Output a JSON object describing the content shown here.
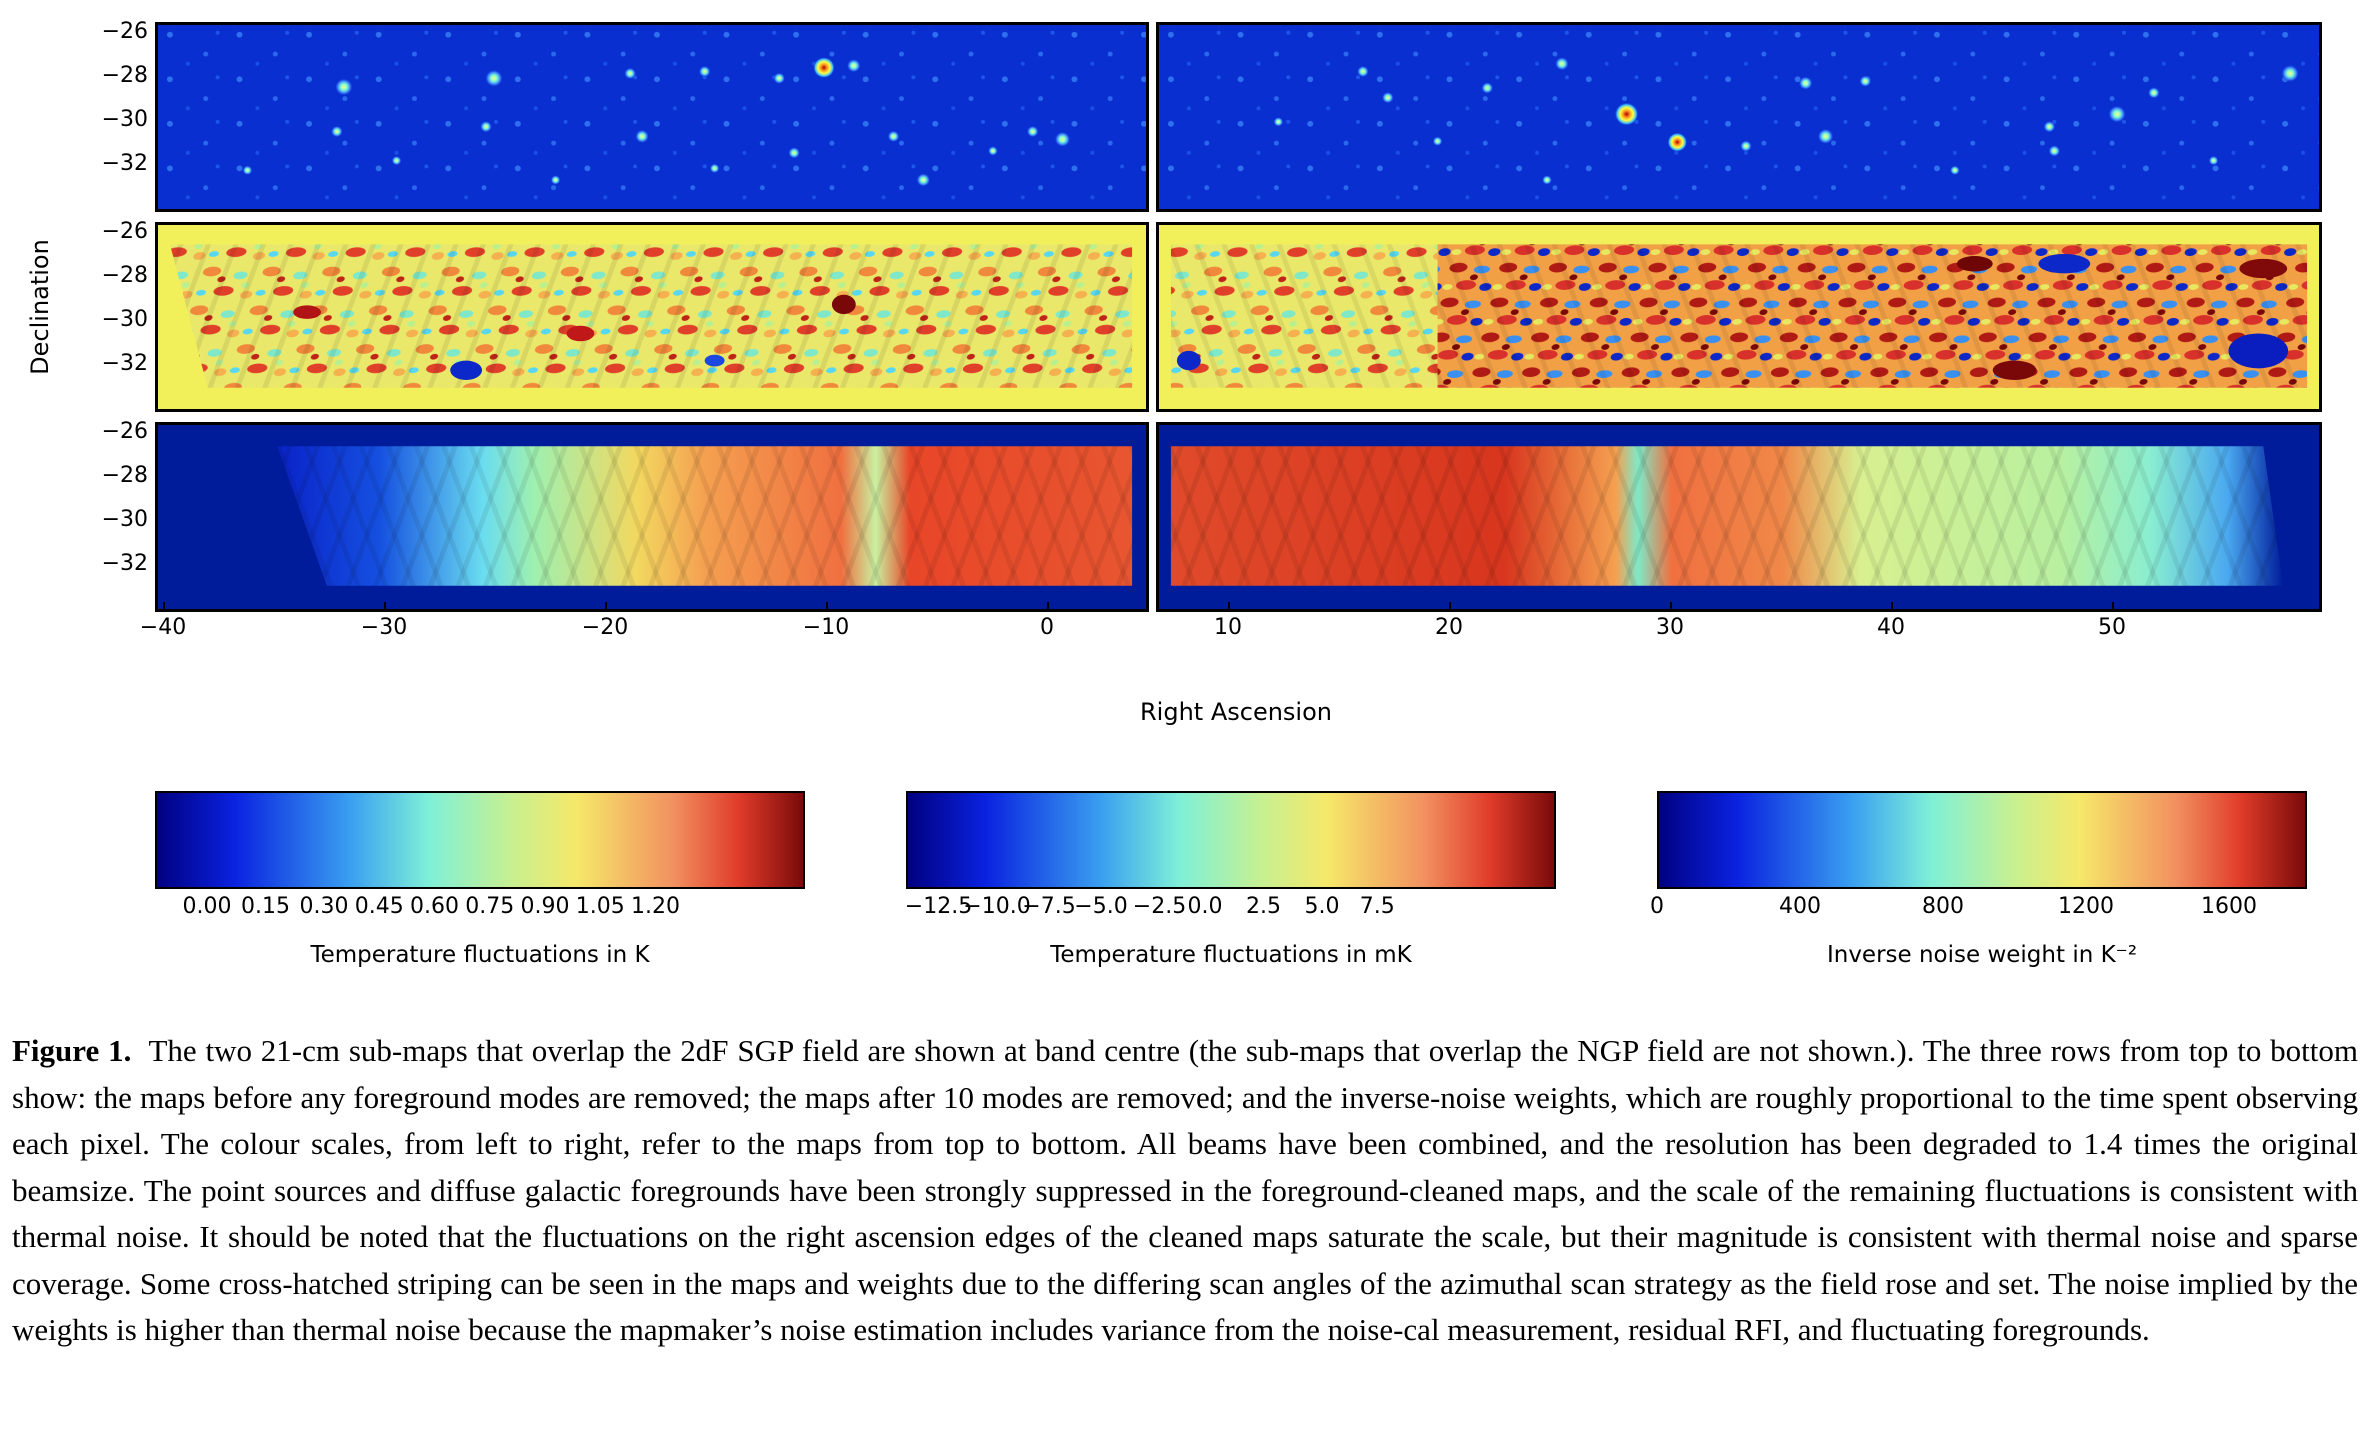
{
  "figure": {
    "y_axis_title": "Declination",
    "x_axis_title": "Right Ascension",
    "y_ticks": [
      "−26",
      "−28",
      "−30",
      "−32"
    ],
    "x_ticks_left": [
      "−40",
      "−30",
      "−20",
      "−10",
      "0"
    ],
    "x_ticks_right": [
      "10",
      "20",
      "30",
      "40",
      "50"
    ],
    "rows": [
      {
        "label": "maps before any foreground modes are removed",
        "colormap": "jet"
      },
      {
        "label": "maps after 10 modes are removed",
        "colormap": "jet"
      },
      {
        "label": "inverse-noise weights",
        "colormap": "jet"
      }
    ]
  },
  "colorbars": [
    {
      "ticks": [
        "0.00",
        "0.15",
        "0.30",
        "0.45",
        "0.60",
        "0.75",
        "0.90",
        "1.05",
        "1.20"
      ],
      "title": "Temperature fluctuations in K"
    },
    {
      "ticks": [
        "−12.5",
        "−10.0",
        "−7.5",
        "−5.0",
        "−2.5",
        "0.0",
        "2.5",
        "5.0",
        "7.5"
      ],
      "title": "Temperature fluctuations in mK"
    },
    {
      "ticks": [
        "0",
        "400",
        "800",
        "1200",
        "1600"
      ],
      "title": "Inverse noise weight in K⁻²"
    }
  ],
  "caption": {
    "label": "Figure 1.",
    "text": "The two 21-cm sub-maps that overlap the 2dF SGP field are shown at band centre (the sub-maps that overlap the NGP field are not shown.). The three rows from top to bottom show: the maps before any foreground modes are removed; the maps after 10 modes are removed; and the inverse-noise weights, which are roughly proportional to the time spent observing each pixel. The colour scales, from left to right, refer to the maps from top to bottom. All beams have been combined, and the resolution has been degraded to 1.4 times the original beamsize. The point sources and diffuse galactic foregrounds have been strongly suppressed in the foreground-cleaned maps, and the scale of the remaining fluctuations is consistent with thermal noise. It should be noted that the fluctuations on the right ascension edges of the cleaned maps saturate the scale, but their magnitude is consistent with thermal noise and sparse coverage. Some cross-hatched striping can be seen in the maps and weights due to the differing scan angles of the azimuthal scan strategy as the field rose and set. The noise implied by the weights is higher than thermal noise because the mapmaker’s noise estimation includes variance from the noise-cal measurement, residual RFI, and fluctuating foregrounds."
  },
  "colors": {
    "jet_dark_blue": "#00008f",
    "jet_blue": "#0a3cdc",
    "jet_cyan": "#7fffbf",
    "jet_yellow": "#eef25a",
    "jet_red": "#e0321e",
    "jet_dark_red": "#7f0000"
  }
}
